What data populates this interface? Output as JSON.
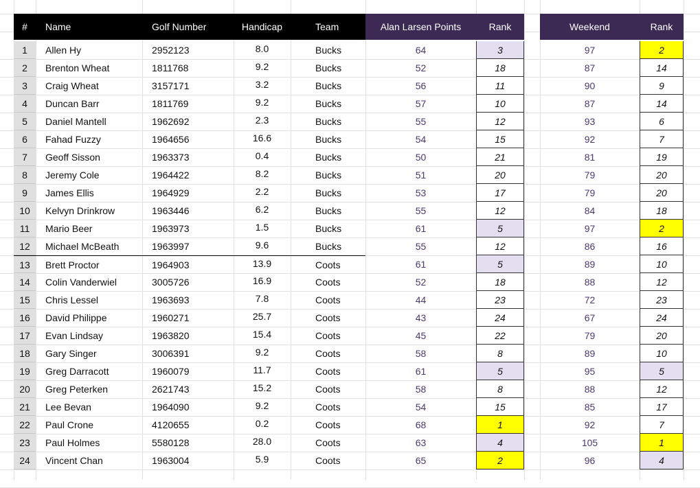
{
  "table": {
    "header": [
      "#",
      "Name",
      "Golf Number",
      "Handicap",
      "Team",
      "Alan Larsen Points",
      "Rank",
      "Weekend",
      "Rank"
    ],
    "rows": [
      [
        1,
        "Allen Hy",
        2952123,
        "8.0",
        "Bucks",
        64,
        3,
        97,
        2
      ],
      [
        2,
        "Brenton Wheat",
        1811768,
        "9.2",
        "Bucks",
        52,
        18,
        87,
        14
      ],
      [
        3,
        "Craig Wheat",
        3157171,
        "3.2",
        "Bucks",
        56,
        11,
        90,
        9
      ],
      [
        4,
        "Duncan Barr",
        1811769,
        "9.2",
        "Bucks",
        57,
        10,
        87,
        14
      ],
      [
        5,
        "Daniel Mantell",
        1962692,
        "2.3",
        "Bucks",
        55,
        12,
        93,
        6
      ],
      [
        6,
        "Fahad Fuzzy",
        1964656,
        "16.6",
        "Bucks",
        54,
        15,
        92,
        7
      ],
      [
        7,
        "Geoff Sisson",
        1963373,
        "0.4",
        "Bucks",
        50,
        21,
        81,
        19
      ],
      [
        8,
        "Jeremy Cole",
        1964422,
        "8.2",
        "Bucks",
        51,
        20,
        79,
        20
      ],
      [
        9,
        "James Ellis",
        1964929,
        "2.2",
        "Bucks",
        53,
        17,
        79,
        20
      ],
      [
        10,
        "Kelvyn Drinkrow",
        1963446,
        "6.2",
        "Bucks",
        55,
        12,
        84,
        18
      ],
      [
        11,
        "Mario Beer",
        1963973,
        "1.5",
        "Bucks",
        61,
        5,
        97,
        2
      ],
      [
        12,
        "Michael McBeath",
        1963997,
        "9.6",
        "Bucks",
        55,
        12,
        86,
        16
      ],
      [
        13,
        "Brett Proctor",
        1964903,
        "13.9",
        "Coots",
        61,
        5,
        89,
        10
      ],
      [
        14,
        "Colin Vanderwiel",
        3005726,
        "16.9",
        "Coots",
        52,
        18,
        88,
        12
      ],
      [
        15,
        "Chris Lessel",
        1963693,
        "7.8",
        "Coots",
        44,
        23,
        72,
        23
      ],
      [
        16,
        "David Philippe",
        1960271,
        "25.7",
        "Coots",
        43,
        24,
        67,
        24
      ],
      [
        17,
        "Evan Lindsay",
        1963820,
        "15.4",
        "Coots",
        45,
        22,
        79,
        20
      ],
      [
        18,
        "Gary Singer",
        3006391,
        "9.2",
        "Coots",
        58,
        8,
        89,
        10
      ],
      [
        19,
        "Greg Darracott",
        1960079,
        "11.7",
        "Coots",
        61,
        5,
        95,
        5
      ],
      [
        20,
        "Greg Peterken",
        2621743,
        "15.2",
        "Coots",
        58,
        8,
        88,
        12
      ],
      [
        21,
        "Lee Bevan",
        1964090,
        "9.2",
        "Coots",
        54,
        15,
        85,
        17
      ],
      [
        22,
        "Paul Crone",
        4120655,
        "0.2",
        "Coots",
        68,
        1,
        92,
        7
      ],
      [
        23,
        "Paul Holmes",
        5580128,
        "28.0",
        "Coots",
        63,
        4,
        105,
        1
      ],
      [
        24,
        "Vincent Chan",
        1963004,
        "5.9",
        "Coots",
        65,
        2,
        96,
        4
      ]
    ]
  }
}
